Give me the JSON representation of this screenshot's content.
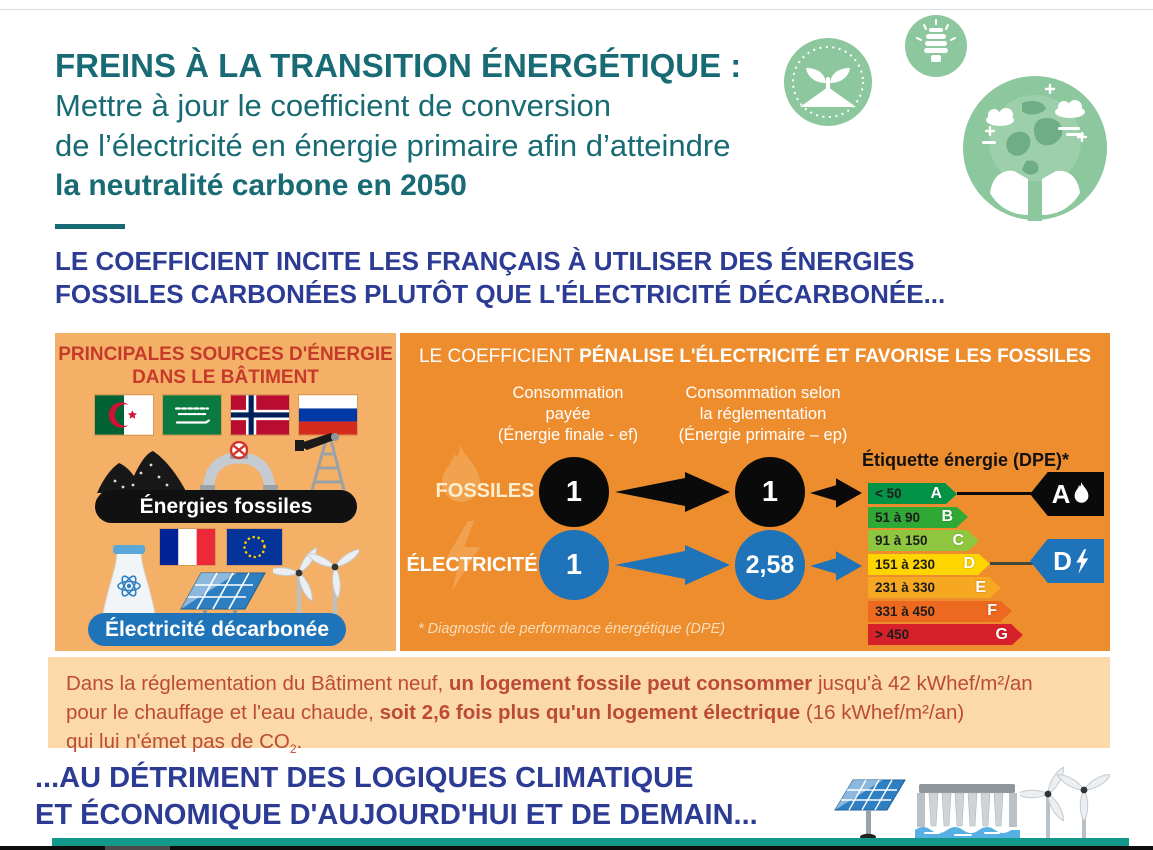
{
  "colors": {
    "teal_heading": "#186b74",
    "navy_text": "#2c3b94",
    "panel_left_orange": "#f4b066",
    "panel_right_orange": "#ee8d2e",
    "callout_beige": "#fbd9a8",
    "callout_red_text": "#bc4a38",
    "left_heading_red": "#c63a2b",
    "electric_blue": "#1e73b9",
    "fossil_black": "#0a0a0a",
    "footer_teal_bar": "#12998b",
    "icon_green": "#8cc79d"
  },
  "header": {
    "title_line1": "FREINS À LA TRANSITION ÉNERGÉTIQUE :",
    "title_line2": "Mettre à jour le coefficient de conversion",
    "title_line3": "de l’électricité en énergie primaire afin d’atteindre",
    "title_line4": "la neutralité carbone en 2050",
    "icons": [
      "sprout-badge",
      "cfl-bulb",
      "earth-in-hands"
    ]
  },
  "intro": {
    "line1": "LE COEFFICIENT INCITE LES FRANÇAIS À UTILISER DES ÉNERGIES",
    "line2": "FOSSILES CARBONÉES PLUTÔT QUE L'ÉLECTRICITÉ DÉCARBONÉE..."
  },
  "left_panel": {
    "title_line1": "PRINCIPALES SOURCES D'ÉNERGIE",
    "title_line2": "DANS LE BÂTIMENT",
    "fossil_flags": [
      "flag-algeria",
      "flag-saudi-arabia",
      "flag-norway",
      "flag-russia"
    ],
    "fossil_icons": [
      "coal-icon",
      "pipeline-icon",
      "oil-derrick-icon"
    ],
    "fossil_label": "Énergies fossiles",
    "elec_flags": [
      "flag-france",
      "flag-european-union"
    ],
    "elec_icons": [
      "nuclear-plant-icon",
      "solar-panel-icon",
      "wind-turbines-icon"
    ],
    "elec_label": "Électricité décarbonée"
  },
  "right_panel": {
    "title_prefix": "LE COEFFICIENT ",
    "title_bold": "PÉNALISE L'ÉLECTRICITÉ",
    "title_suffix": " ET FAVORISE LES FOSSILES",
    "col1": [
      "Consommation",
      "payée",
      "(Énergie finale - ef)"
    ],
    "col2": [
      "Consommation selon",
      "la réglementation",
      "(Énergie primaire – ep)"
    ],
    "rows": [
      {
        "label": "FOSSILES",
        "ef": "1",
        "ep": "1"
      },
      {
        "label": "ÉLECTRICITÉ",
        "ef": "1",
        "ep": "2,58"
      }
    ],
    "dpe_title": "Étiquette énergie (DPE)*",
    "dpe_rows": [
      {
        "range": "< 50",
        "letter": "A",
        "color": "#029347"
      },
      {
        "range": "51 à 90",
        "letter": "B",
        "color": "#2fa836"
      },
      {
        "range": "91 à 150",
        "letter": "C",
        "color": "#8ec63f"
      },
      {
        "range": "151 à 230",
        "letter": "D",
        "color": "#ffd500"
      },
      {
        "range": "231 à 330",
        "letter": "E",
        "color": "#f7a823"
      },
      {
        "range": "331 à 450",
        "letter": "F",
        "color": "#ec691f"
      },
      {
        "range": "> 450",
        "letter": "G",
        "color": "#d7212a"
      }
    ],
    "badge_a": {
      "letter": "A",
      "icon": "flame"
    },
    "badge_d": {
      "letter": "D",
      "icon": "lightning"
    },
    "footnote": "* Diagnostic de performance énergétique (DPE)"
  },
  "callout": {
    "segments": [
      {
        "text": "Dans la réglementation du Bâtiment neuf, "
      },
      {
        "text": "un logement fossile peut consommer",
        "bold": true
      },
      {
        "text": " jusqu'à 42 kWhef/m²/an"
      },
      {
        "br": true
      },
      {
        "text": "pour le chauffage et l'eau chaude, "
      },
      {
        "text": "soit 2,6 fois plus qu'un logement électrique",
        "bold": true
      },
      {
        "text": " (16 kWhef/m²/an)"
      },
      {
        "br": true
      },
      {
        "text": "qui lui n'émet pas de CO"
      },
      {
        "text": "2",
        "sub": true
      },
      {
        "text": "."
      }
    ]
  },
  "outro": {
    "line1": "...AU DÉTRIMENT DES LOGIQUES CLIMATIQUE",
    "line2": "ET ÉCONOMIQUE D'AUJOURD'HUI ET DE DEMAIN...",
    "icons": [
      "solar-panel",
      "hydro-dam",
      "wind-turbines"
    ]
  }
}
